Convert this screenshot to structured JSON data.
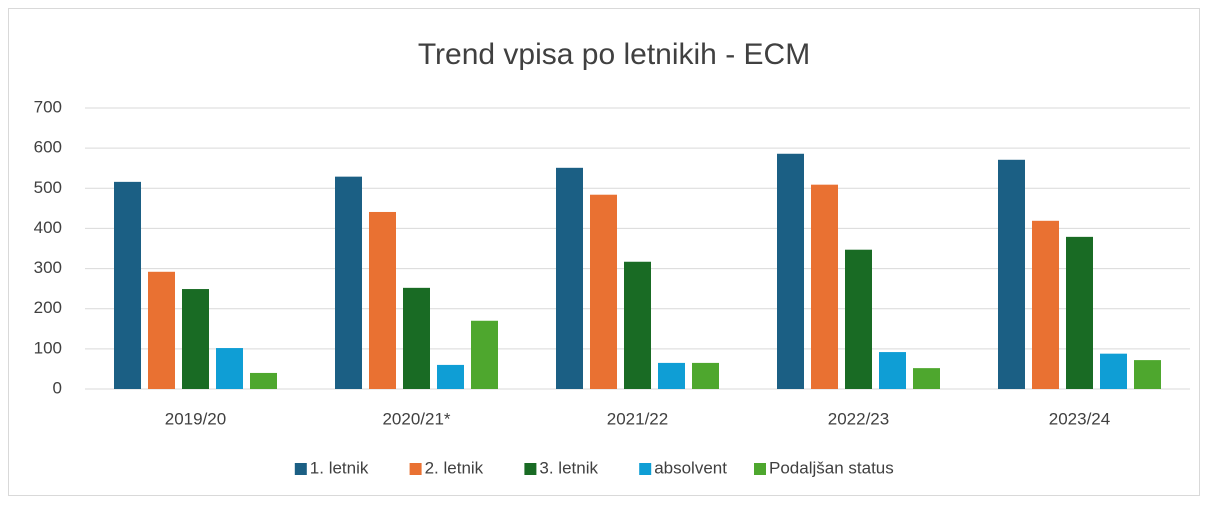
{
  "chart_data": {
    "type": "bar",
    "title": "Trend vpisa po letnikih - ECM",
    "categories": [
      "2019/20",
      "2020/21*",
      "2021/22",
      "2022/23",
      "2023/24"
    ],
    "series": [
      {
        "name": "1. letnik",
        "color": "#1b5f84",
        "values": [
          516,
          529,
          551,
          586,
          571
        ]
      },
      {
        "name": "2. letnik",
        "color": "#e97132",
        "values": [
          292,
          441,
          484,
          509,
          419
        ]
      },
      {
        "name": "3. letnik",
        "color": "#196b24",
        "values": [
          249,
          252,
          317,
          347,
          379
        ]
      },
      {
        "name": "absolvent",
        "color": "#0f9ed5",
        "values": [
          102,
          60,
          65,
          92,
          88
        ]
      },
      {
        "name": "Podaljšan status",
        "color": "#4ea72e",
        "values": [
          40,
          170,
          65,
          52,
          72
        ]
      }
    ],
    "ylim": [
      0,
      700
    ],
    "yticks": [
      0,
      100,
      200,
      300,
      400,
      500,
      600,
      700
    ],
    "grid": true,
    "legend": "bottom"
  }
}
